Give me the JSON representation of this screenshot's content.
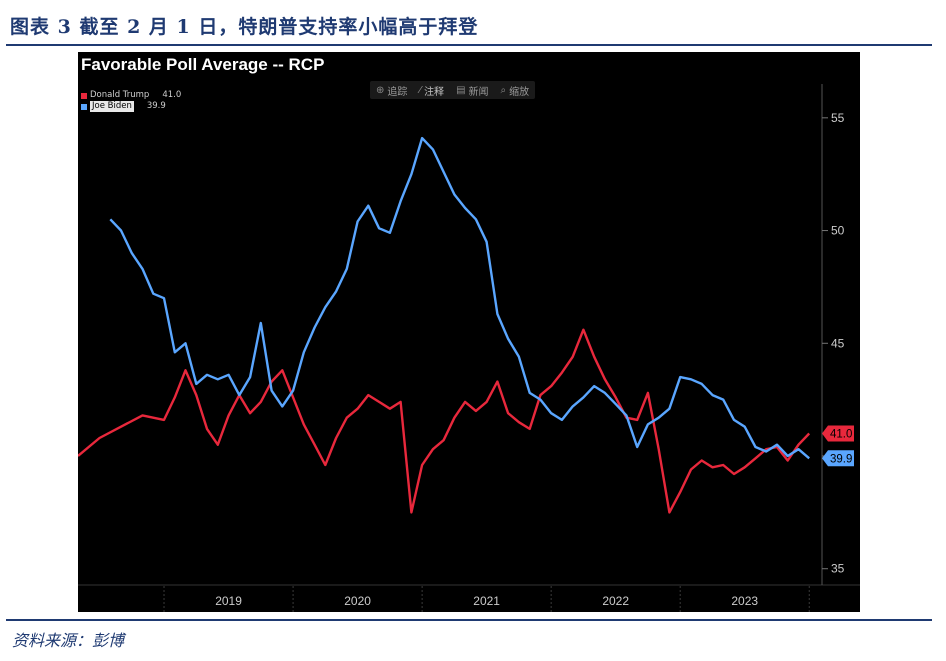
{
  "figure_title": "图表 3   截至 2 月 1 日，特朗普支持率小幅高于拜登",
  "source_note": "资料来源：彭博",
  "toolbar": [
    {
      "icon": "crosshair-icon",
      "glyph": "⊕",
      "label": "追踪"
    },
    {
      "icon": "annotate-icon",
      "glyph": "⁄",
      "label": "注释"
    },
    {
      "icon": "news-icon",
      "glyph": "▤",
      "label": "新闻"
    },
    {
      "icon": "zoom-icon",
      "glyph": "⌕",
      "label": "缩放"
    }
  ],
  "colors": {
    "trump": "#e8283c",
    "biden": "#5aa6ff",
    "grid": "#2a2a2a",
    "axis_text": "#cccccc",
    "background": "#000000"
  },
  "chart_data": {
    "type": "line",
    "title": "Favorable Poll Average -- RCP",
    "x_axis": {
      "type": "time",
      "tick_labels": [
        "2019",
        "2020",
        "2021",
        "2022",
        "2023"
      ],
      "range": [
        "2018-05",
        "2024-02"
      ]
    },
    "y_axis": {
      "position": "right",
      "ticks": [
        35,
        40,
        45,
        50,
        55
      ],
      "tick_labels": [
        "35",
        "45",
        "50",
        "55"
      ],
      "range": [
        34.5,
        56.5
      ]
    },
    "grid": "dashed vertical at year boundaries",
    "legend": {
      "placement": "top-left",
      "entries": [
        {
          "name": "Donald Trump",
          "value": "41.0",
          "color": "#e8283c"
        },
        {
          "name": "Joe Biden",
          "value": "39.9",
          "color": "#5aa6ff"
        }
      ]
    },
    "last_value_labels": [
      {
        "series": "Donald Trump",
        "text": "41.0"
      },
      {
        "series": "Joe Biden",
        "text": "39.9"
      }
    ],
    "series": [
      {
        "name": "Donald Trump",
        "color": "#e8283c",
        "points": [
          [
            "2018-05",
            40.0
          ],
          [
            "2018-07",
            40.8
          ],
          [
            "2018-09",
            41.3
          ],
          [
            "2018-11",
            41.8
          ],
          [
            "2019-01",
            41.6
          ],
          [
            "2019-02",
            42.6
          ],
          [
            "2019-03",
            43.8
          ],
          [
            "2019-04",
            42.7
          ],
          [
            "2019-05",
            41.2
          ],
          [
            "2019-06",
            40.5
          ],
          [
            "2019-07",
            41.8
          ],
          [
            "2019-08",
            42.7
          ],
          [
            "2019-09",
            41.9
          ],
          [
            "2019-10",
            42.4
          ],
          [
            "2019-11",
            43.3
          ],
          [
            "2019-12",
            43.8
          ],
          [
            "2020-01",
            42.6
          ],
          [
            "2020-02",
            41.4
          ],
          [
            "2020-03",
            40.5
          ],
          [
            "2020-04",
            39.6
          ],
          [
            "2020-05",
            40.8
          ],
          [
            "2020-06",
            41.7
          ],
          [
            "2020-07",
            42.1
          ],
          [
            "2020-08",
            42.7
          ],
          [
            "2020-09",
            42.4
          ],
          [
            "2020-10",
            42.1
          ],
          [
            "2020-11",
            42.4
          ],
          [
            "2020-12",
            37.5
          ],
          [
            "2021-01",
            39.6
          ],
          [
            "2021-02",
            40.3
          ],
          [
            "2021-03",
            40.7
          ],
          [
            "2021-04",
            41.7
          ],
          [
            "2021-05",
            42.4
          ],
          [
            "2021-06",
            42.0
          ],
          [
            "2021-07",
            42.4
          ],
          [
            "2021-08",
            43.3
          ],
          [
            "2021-09",
            41.9
          ],
          [
            "2021-10",
            41.5
          ],
          [
            "2021-11",
            41.2
          ],
          [
            "2021-12",
            42.7
          ],
          [
            "2022-01",
            43.1
          ],
          [
            "2022-02",
            43.7
          ],
          [
            "2022-03",
            44.4
          ],
          [
            "2022-04",
            45.6
          ],
          [
            "2022-05",
            44.4
          ],
          [
            "2022-06",
            43.4
          ],
          [
            "2022-07",
            42.6
          ],
          [
            "2022-08",
            41.7
          ],
          [
            "2022-09",
            41.6
          ],
          [
            "2022-10",
            42.8
          ],
          [
            "2022-11",
            40.3
          ],
          [
            "2022-12",
            37.5
          ],
          [
            "2023-01",
            38.4
          ],
          [
            "2023-02",
            39.4
          ],
          [
            "2023-03",
            39.8
          ],
          [
            "2023-04",
            39.5
          ],
          [
            "2023-05",
            39.6
          ],
          [
            "2023-06",
            39.2
          ],
          [
            "2023-07",
            39.5
          ],
          [
            "2023-08",
            39.9
          ],
          [
            "2023-09",
            40.3
          ],
          [
            "2023-10",
            40.4
          ],
          [
            "2023-11",
            39.8
          ],
          [
            "2023-12",
            40.5
          ],
          [
            "2024-01",
            41.0
          ]
        ]
      },
      {
        "name": "Joe Biden",
        "color": "#5aa6ff",
        "points": [
          [
            "2018-08",
            50.5
          ],
          [
            "2018-09",
            50.0
          ],
          [
            "2018-10",
            49.0
          ],
          [
            "2018-11",
            48.3
          ],
          [
            "2018-12",
            47.2
          ],
          [
            "2019-01",
            47.0
          ],
          [
            "2019-02",
            44.6
          ],
          [
            "2019-03",
            45.0
          ],
          [
            "2019-04",
            43.2
          ],
          [
            "2019-05",
            43.6
          ],
          [
            "2019-06",
            43.4
          ],
          [
            "2019-07",
            43.6
          ],
          [
            "2019-08",
            42.7
          ],
          [
            "2019-09",
            43.5
          ],
          [
            "2019-10",
            45.9
          ],
          [
            "2019-11",
            42.9
          ],
          [
            "2019-12",
            42.2
          ],
          [
            "2020-01",
            42.9
          ],
          [
            "2020-02",
            44.6
          ],
          [
            "2020-03",
            45.7
          ],
          [
            "2020-04",
            46.6
          ],
          [
            "2020-05",
            47.3
          ],
          [
            "2020-06",
            48.3
          ],
          [
            "2020-07",
            50.4
          ],
          [
            "2020-08",
            51.1
          ],
          [
            "2020-09",
            50.1
          ],
          [
            "2020-10",
            49.9
          ],
          [
            "2020-11",
            51.3
          ],
          [
            "2020-12",
            52.5
          ],
          [
            "2021-01",
            54.1
          ],
          [
            "2021-02",
            53.6
          ],
          [
            "2021-03",
            52.6
          ],
          [
            "2021-04",
            51.6
          ],
          [
            "2021-05",
            51.0
          ],
          [
            "2021-06",
            50.5
          ],
          [
            "2021-07",
            49.5
          ],
          [
            "2021-08",
            46.3
          ],
          [
            "2021-09",
            45.2
          ],
          [
            "2021-10",
            44.4
          ],
          [
            "2021-11",
            42.8
          ],
          [
            "2021-12",
            42.5
          ],
          [
            "2022-01",
            41.9
          ],
          [
            "2022-02",
            41.6
          ],
          [
            "2022-03",
            42.2
          ],
          [
            "2022-04",
            42.6
          ],
          [
            "2022-05",
            43.1
          ],
          [
            "2022-06",
            42.8
          ],
          [
            "2022-07",
            42.3
          ],
          [
            "2022-08",
            41.8
          ],
          [
            "2022-09",
            40.4
          ],
          [
            "2022-10",
            41.4
          ],
          [
            "2022-11",
            41.7
          ],
          [
            "2022-12",
            42.1
          ],
          [
            "2023-01",
            43.5
          ],
          [
            "2023-02",
            43.4
          ],
          [
            "2023-03",
            43.2
          ],
          [
            "2023-04",
            42.7
          ],
          [
            "2023-05",
            42.5
          ],
          [
            "2023-06",
            41.6
          ],
          [
            "2023-07",
            41.3
          ],
          [
            "2023-08",
            40.4
          ],
          [
            "2023-09",
            40.2
          ],
          [
            "2023-10",
            40.5
          ],
          [
            "2023-11",
            40.0
          ],
          [
            "2023-12",
            40.3
          ],
          [
            "2024-01",
            39.9
          ]
        ]
      }
    ]
  }
}
